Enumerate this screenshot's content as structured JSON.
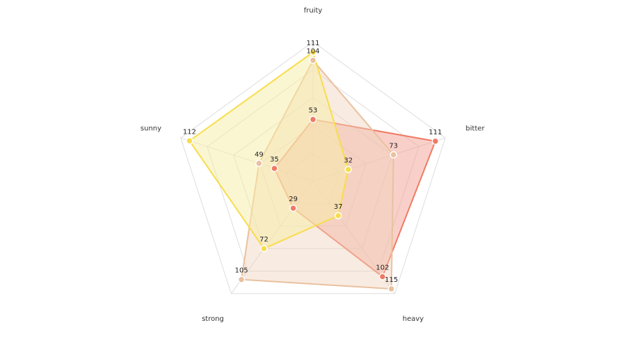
{
  "chart_data": {
    "type": "radar",
    "indicators": [
      {
        "name": "fruity",
        "max": 120
      },
      {
        "name": "bitter",
        "max": 120
      },
      {
        "name": "heavy",
        "max": 120
      },
      {
        "name": "strong",
        "max": 120
      },
      {
        "name": "sunny",
        "max": 120
      }
    ],
    "series": [
      {
        "values": [
          53,
          111,
          102,
          29,
          35
        ],
        "color": "#ef7a63",
        "fill": "#f3a193",
        "fill_opacity": 0.5
      },
      {
        "values": [
          104,
          73,
          115,
          105,
          49
        ],
        "color": "#e9c19e",
        "fill": "#f0d2bd",
        "fill_opacity": 0.45
      },
      {
        "values": [
          111,
          32,
          37,
          72,
          112
        ],
        "color": "#f7dd4c",
        "fill": "#f8eea6",
        "fill_opacity": 0.5
      }
    ],
    "split_number": 5,
    "grid_color": "#dddddd",
    "legend": "none"
  }
}
